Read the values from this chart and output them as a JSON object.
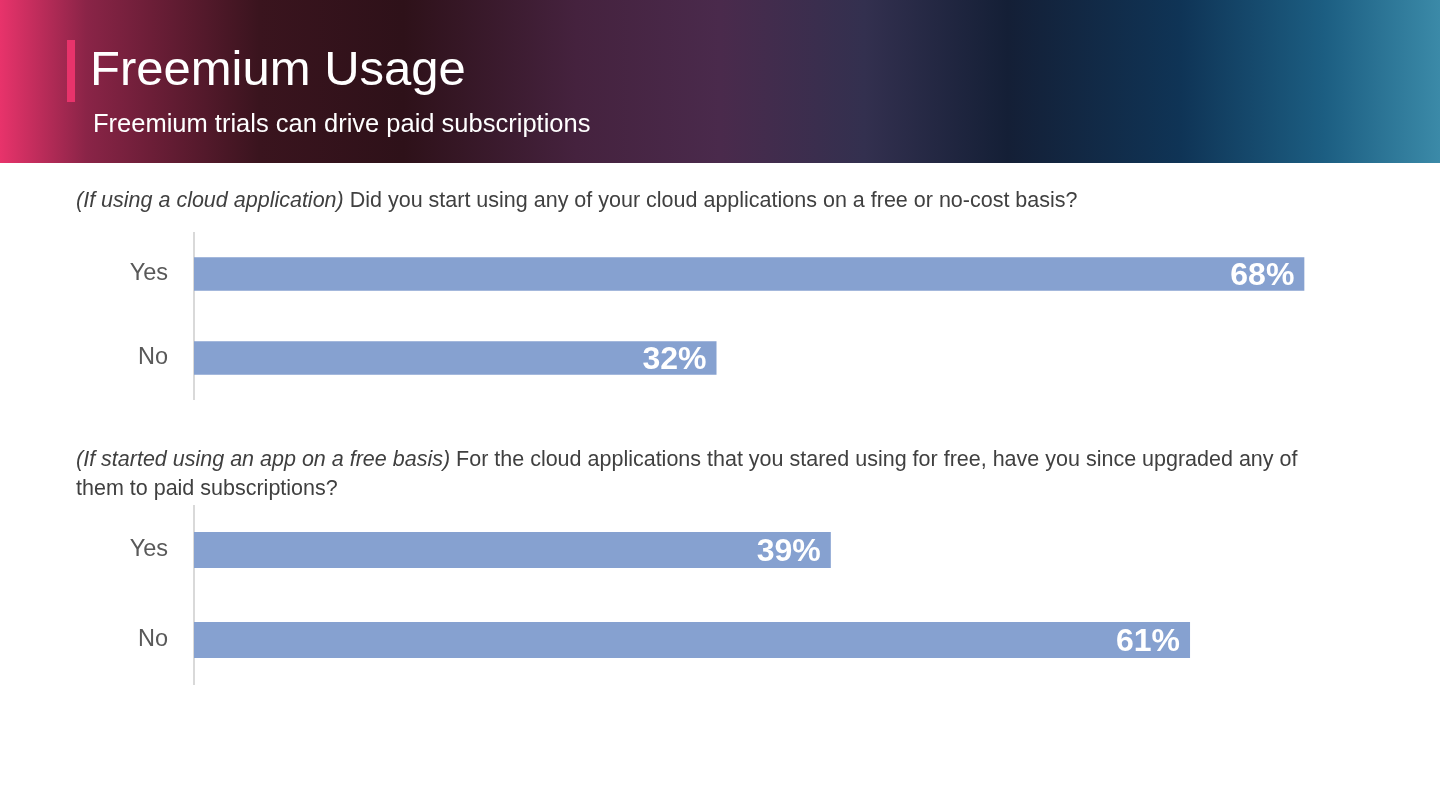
{
  "chart_data": [
    {
      "type": "other",
      "title": "Freemium Usage",
      "subtitle": "Freemium trials can drive paid subscriptions"
    },
    {
      "type": "bar",
      "orientation": "horizontal",
      "title": "(If using a cloud application) Did you start using any of your cloud applications on a free or no-cost basis?",
      "categories": [
        "Yes",
        "No"
      ],
      "values": [
        68,
        32
      ],
      "value_labels": [
        "68%",
        "32%"
      ],
      "color": "#86a1d0",
      "tick_labels": "y"
    },
    {
      "type": "bar",
      "orientation": "horizontal",
      "title": "(If started using an app on a free basis) For the cloud applications that you stared using for free, have you since upgraded any of them to paid subscriptions?",
      "categories": [
        "Yes",
        "No"
      ],
      "values": [
        39,
        61
      ],
      "value_labels": [
        "39%",
        "61%"
      ],
      "color": "#86a1d0",
      "tick_labels": "y"
    }
  ]
}
